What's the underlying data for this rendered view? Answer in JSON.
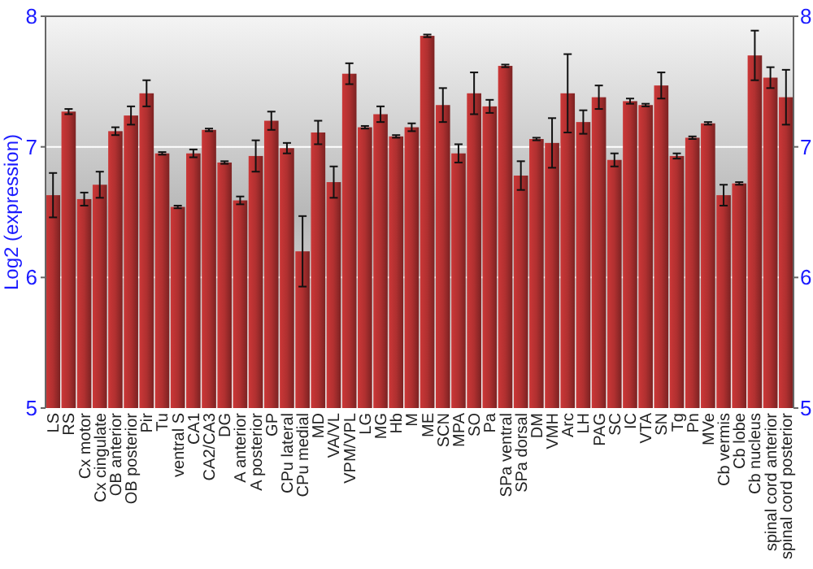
{
  "chart_data": {
    "type": "bar",
    "ylabel": "Log2 (expression)",
    "categories": [
      "LS",
      "RS",
      "Cx motor",
      "Cx cingulate",
      "OB anterior",
      "OB posterior",
      "Pir",
      "Tu",
      "ventral S",
      "CA1",
      "CA2/CA3",
      "DG",
      "A anterior",
      "A posterior",
      "GP",
      "CPu lateral",
      "CPu medial",
      "MD",
      "VA/VL",
      "VPM/VPL",
      "LG",
      "MG",
      "Hb",
      "M",
      "ME",
      "SCN",
      "MPA",
      "SO",
      "Pa",
      "SPa ventral",
      "SPa dorsal",
      "DM",
      "VMH",
      "Arc",
      "LH",
      "PAG",
      "SC",
      "IC",
      "VTA",
      "SN",
      "Tg",
      "Pn",
      "MVe",
      "Cb vermis",
      "Cb lobe",
      "Cb nucleus",
      "spinal cord anterior",
      "spinal cord posterior"
    ],
    "values": [
      6.63,
      7.27,
      6.6,
      6.71,
      7.12,
      7.24,
      7.41,
      6.95,
      6.54,
      6.95,
      7.13,
      6.88,
      6.59,
      6.93,
      7.2,
      6.99,
      6.2,
      7.11,
      6.73,
      7.56,
      7.15,
      7.25,
      7.08,
      7.15,
      7.85,
      7.32,
      6.95,
      7.41,
      7.31,
      7.62,
      6.78,
      7.06,
      7.03,
      7.41,
      7.19,
      7.38,
      6.9,
      7.35,
      7.32,
      7.47,
      6.93,
      7.07,
      7.18,
      6.63,
      6.72,
      7.7,
      7.53,
      7.38
    ],
    "errors": [
      0.17,
      0.02,
      0.05,
      0.1,
      0.03,
      0.07,
      0.1,
      0.01,
      0.01,
      0.03,
      0.01,
      0.01,
      0.03,
      0.12,
      0.07,
      0.04,
      0.27,
      0.09,
      0.12,
      0.08,
      0.01,
      0.06,
      0.01,
      0.03,
      0.01,
      0.13,
      0.07,
      0.16,
      0.05,
      0.01,
      0.11,
      0.01,
      0.19,
      0.3,
      0.09,
      0.09,
      0.05,
      0.02,
      0.01,
      0.1,
      0.02,
      0.01,
      0.01,
      0.08,
      0.01,
      0.19,
      0.08,
      0.21
    ],
    "color": "#b03030",
    "ylim": [
      5,
      8
    ],
    "yticks": [
      5,
      6,
      7,
      8
    ],
    "y2lim": [
      5,
      8
    ],
    "y2ticks": [
      5,
      6,
      7,
      8
    ],
    "grid": "y"
  }
}
